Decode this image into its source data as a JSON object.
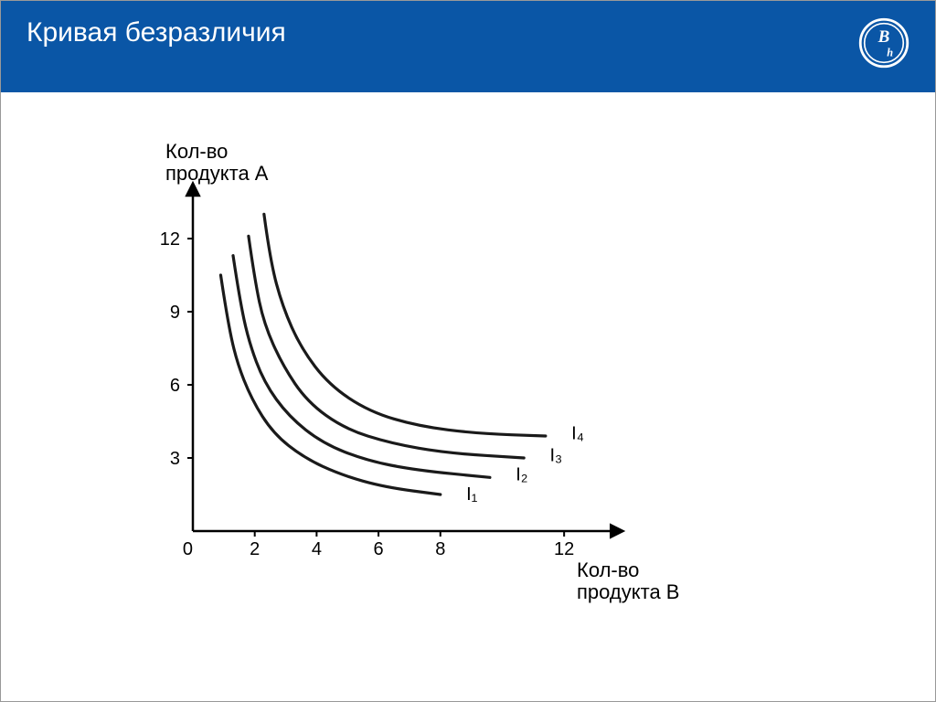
{
  "header": {
    "title": "Кривая безразличия",
    "bg_color": "#0a56a6",
    "text_color": "#ffffff"
  },
  "chart": {
    "type": "line",
    "y_label_line1": "Кол-во",
    "y_label_line2": "продукта А",
    "x_label_line1": "Кол-во",
    "x_label_line2": "продукта В",
    "axis_color": "#000000",
    "curve_color": "#1a1a1a",
    "curve_width": 3.2,
    "background_color": "#ffffff",
    "label_fontsize": 22,
    "tick_fontsize": 20,
    "xlim": [
      0,
      13
    ],
    "ylim": [
      0,
      13.5
    ],
    "x_ticks": [
      {
        "v": 0,
        "label": "0"
      },
      {
        "v": 2,
        "label": "2"
      },
      {
        "v": 4,
        "label": "4"
      },
      {
        "v": 6,
        "label": "6"
      },
      {
        "v": 8,
        "label": "8"
      },
      {
        "v": 12,
        "label": "12"
      }
    ],
    "y_ticks": [
      {
        "v": 3,
        "label": "3"
      },
      {
        "v": 6,
        "label": "6"
      },
      {
        "v": 9,
        "label": "9"
      },
      {
        "v": 12,
        "label": "12"
      }
    ],
    "curves": [
      {
        "label": "I₁",
        "label_at": [
          8.6,
          1.5
        ],
        "pts": [
          [
            0.9,
            10.5
          ],
          [
            1.1,
            8.8
          ],
          [
            1.4,
            7.0
          ],
          [
            1.9,
            5.4
          ],
          [
            2.6,
            4.0
          ],
          [
            3.6,
            3.0
          ],
          [
            4.8,
            2.3
          ],
          [
            6.2,
            1.8
          ],
          [
            8.0,
            1.5
          ]
        ]
      },
      {
        "label": "I₂",
        "label_at": [
          10.2,
          2.3
        ],
        "pts": [
          [
            1.3,
            11.3
          ],
          [
            1.5,
            9.6
          ],
          [
            1.8,
            7.8
          ],
          [
            2.3,
            6.1
          ],
          [
            3.1,
            4.7
          ],
          [
            4.2,
            3.6
          ],
          [
            5.6,
            2.9
          ],
          [
            7.2,
            2.5
          ],
          [
            9.6,
            2.2
          ]
        ]
      },
      {
        "label": "I₃",
        "label_at": [
          11.3,
          3.1
        ],
        "pts": [
          [
            1.8,
            12.1
          ],
          [
            2.0,
            10.3
          ],
          [
            2.3,
            8.5
          ],
          [
            2.9,
            6.8
          ],
          [
            3.7,
            5.3
          ],
          [
            4.9,
            4.2
          ],
          [
            6.4,
            3.6
          ],
          [
            8.2,
            3.2
          ],
          [
            10.7,
            3.0
          ]
        ]
      },
      {
        "label": "I₄",
        "label_at": [
          12.0,
          4.0
        ],
        "pts": [
          [
            2.3,
            13.0
          ],
          [
            2.5,
            11.1
          ],
          [
            2.9,
            9.2
          ],
          [
            3.5,
            7.5
          ],
          [
            4.4,
            6.0
          ],
          [
            5.7,
            4.9
          ],
          [
            7.3,
            4.3
          ],
          [
            9.2,
            4.0
          ],
          [
            11.4,
            3.9
          ]
        ]
      }
    ]
  }
}
